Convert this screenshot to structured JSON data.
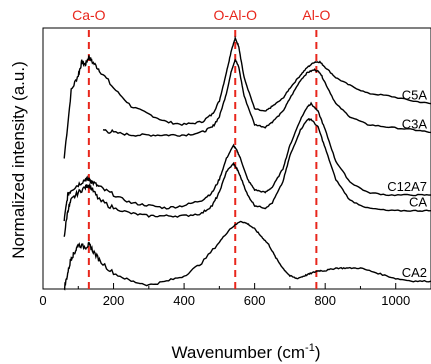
{
  "chart_data": {
    "type": "line",
    "title": "",
    "xlabel": "Wavenumber (cm",
    "xlabel_sup": "-1",
    "xlabel_close": ")",
    "ylabel": "Normalized intensity (a.u.)",
    "xlim": [
      0,
      1100
    ],
    "ylim": [
      0,
      10
    ],
    "x_ticks": [
      0,
      200,
      400,
      600,
      800,
      1000
    ],
    "x_tick_labels": [
      "0",
      "200",
      "400",
      "600",
      "800",
      "1000"
    ],
    "y_ticks_labeled": false,
    "grid": false,
    "reference_color": "#e8261c",
    "reference_lines": [
      {
        "label": "Ca-O",
        "x": 130
      },
      {
        "label": "O-Al-O",
        "x": 545
      },
      {
        "label": "Al-O",
        "x": 775
      }
    ],
    "series": [
      {
        "name": "C5A",
        "x": [
          60,
          80,
          100,
          110,
          120,
          130,
          140,
          160,
          200,
          250,
          300,
          350,
          400,
          450,
          480,
          500,
          520,
          535,
          545,
          555,
          570,
          600,
          630,
          650,
          680,
          700,
          730,
          750,
          770,
          785,
          800,
          830,
          870,
          920,
          980,
          1050,
          1100
        ],
        "y": [
          5.0,
          7.6,
          8.2,
          8.7,
          8.6,
          8.9,
          8.7,
          8.4,
          7.7,
          7.0,
          6.7,
          6.4,
          6.3,
          6.4,
          6.7,
          7.2,
          8.3,
          9.2,
          9.6,
          9.3,
          8.1,
          6.9,
          6.8,
          7.0,
          7.3,
          7.7,
          8.2,
          8.5,
          8.7,
          8.7,
          8.5,
          8.1,
          7.8,
          7.5,
          7.4,
          7.2,
          7.1
        ]
      },
      {
        "name": "C3A",
        "x": [
          170,
          200,
          250,
          300,
          350,
          400,
          450,
          480,
          500,
          520,
          535,
          545,
          555,
          570,
          600,
          630,
          650,
          680,
          700,
          730,
          750,
          770,
          785,
          800,
          830,
          870,
          920,
          980,
          1050,
          1100
        ],
        "y": [
          6.1,
          6.0,
          5.9,
          5.9,
          5.9,
          5.9,
          6.0,
          6.2,
          6.6,
          7.5,
          8.4,
          8.8,
          8.5,
          7.4,
          6.3,
          6.2,
          6.4,
          6.8,
          7.3,
          8.0,
          8.3,
          8.4,
          8.3,
          7.9,
          7.1,
          6.6,
          6.3,
          6.2,
          6.1,
          6.0
        ]
      },
      {
        "name": "C12A7",
        "x": [
          60,
          70,
          80,
          100,
          120,
          130,
          140,
          160,
          200,
          250,
          300,
          350,
          400,
          450,
          480,
          500,
          520,
          540,
          550,
          560,
          580,
          600,
          630,
          650,
          680,
          700,
          730,
          750,
          760,
          780,
          800,
          830,
          870,
          920,
          980,
          1050,
          1100
        ],
        "y": [
          2.6,
          3.6,
          3.8,
          4.0,
          4.2,
          4.2,
          4.1,
          3.9,
          3.6,
          3.3,
          3.2,
          3.1,
          3.2,
          3.4,
          3.7,
          4.2,
          5.0,
          5.5,
          5.3,
          5.0,
          4.2,
          3.8,
          3.7,
          3.9,
          4.6,
          5.5,
          6.5,
          7.0,
          7.1,
          6.8,
          6.1,
          4.9,
          4.1,
          3.7,
          3.6,
          3.6,
          3.6
        ]
      },
      {
        "name": "CA",
        "x": [
          60,
          70,
          80,
          100,
          120,
          130,
          140,
          160,
          200,
          250,
          300,
          350,
          400,
          450,
          480,
          500,
          520,
          540,
          550,
          560,
          580,
          600,
          630,
          650,
          680,
          700,
          730,
          750,
          760,
          780,
          800,
          830,
          870,
          920,
          980,
          1050,
          1100
        ],
        "y": [
          2.0,
          3.0,
          3.4,
          3.7,
          3.9,
          4.0,
          3.8,
          3.4,
          3.1,
          2.9,
          2.8,
          2.8,
          2.8,
          2.9,
          3.2,
          3.7,
          4.5,
          4.8,
          4.6,
          4.3,
          3.6,
          3.2,
          3.1,
          3.3,
          4.1,
          5.1,
          6.1,
          6.5,
          6.5,
          6.2,
          5.4,
          4.2,
          3.4,
          3.1,
          3.0,
          3.0,
          3.0
        ]
      },
      {
        "name": "CA2",
        "x": [
          60,
          70,
          80,
          90,
          100,
          120,
          130,
          140,
          160,
          200,
          250,
          300,
          350,
          400,
          450,
          500,
          530,
          560,
          580,
          600,
          620,
          640,
          660,
          680,
          700,
          720,
          740,
          760,
          780,
          800,
          830,
          860,
          900,
          950,
          1000,
          1050,
          1100
        ],
        "y": [
          0.0,
          0.6,
          1.2,
          1.4,
          1.7,
          1.6,
          1.7,
          1.5,
          1.1,
          0.6,
          0.3,
          0.15,
          0.3,
          0.5,
          1.0,
          1.8,
          2.3,
          2.6,
          2.5,
          2.3,
          2.0,
          1.7,
          1.2,
          0.8,
          0.5,
          0.4,
          0.5,
          0.6,
          0.7,
          0.7,
          0.8,
          0.8,
          0.8,
          0.6,
          0.4,
          0.3,
          0.3
        ]
      }
    ]
  }
}
